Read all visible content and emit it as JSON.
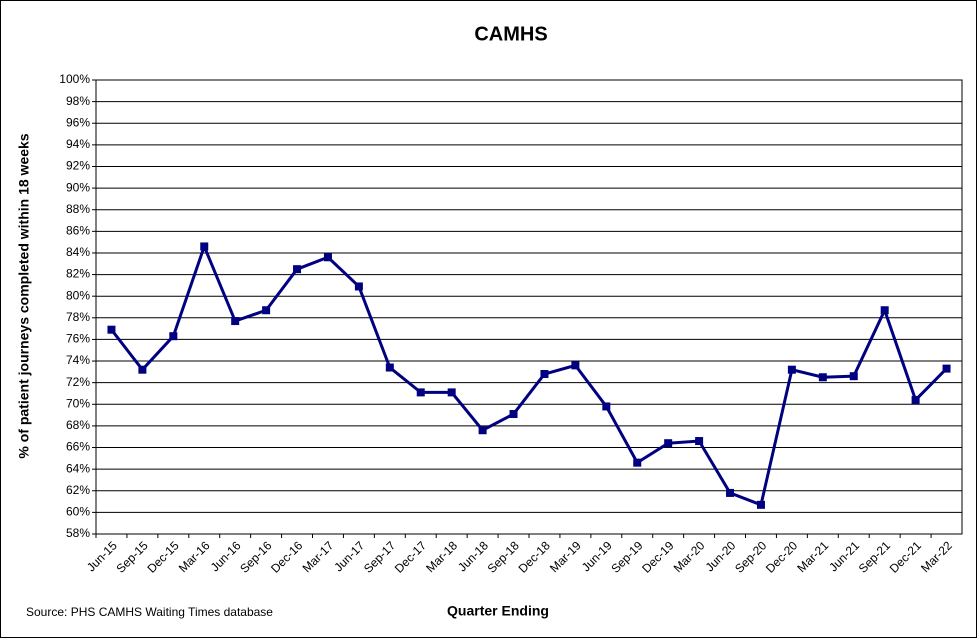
{
  "chart_data": {
    "type": "line",
    "title": "CAMHS",
    "x_label": "Quarter Ending",
    "y_label": "% of patient journeys completed within 18 weeks",
    "source": "Source:  PHS CAMHS Waiting Times database",
    "categories": [
      "Jun-15",
      "Sep-15",
      "Dec-15",
      "Mar-16",
      "Jun-16",
      "Sep-16",
      "Dec-16",
      "Mar-17",
      "Jun-17",
      "Sep-17",
      "Dec-17",
      "Mar-18",
      "Jun-18",
      "Sep-18",
      "Dec-18",
      "Mar-19",
      "Jun-19",
      "Sep-19",
      "Dec-19",
      "Mar-20",
      "Jun-20",
      "Sep-20",
      "Dec-20",
      "Mar-21",
      "Jun-21",
      "Sep-21",
      "Dec-21",
      "Mar-22"
    ],
    "series": [
      {
        "name": "CAMHS",
        "color": "#000080",
        "values": [
          76.9,
          73.2,
          76.3,
          84.6,
          77.7,
          78.7,
          82.5,
          83.6,
          80.9,
          73.4,
          71.1,
          71.1,
          67.6,
          69.1,
          72.8,
          73.6,
          69.8,
          64.6,
          66.4,
          66.6,
          61.8,
          60.7,
          73.2,
          72.5,
          72.6,
          78.7,
          70.4,
          73.3
        ]
      }
    ],
    "ylim": [
      58,
      100
    ],
    "yticks": [
      {
        "value": 58,
        "label": "58%"
      },
      {
        "value": 60,
        "label": "60%"
      },
      {
        "value": 62,
        "label": "62%"
      },
      {
        "value": 64,
        "label": "64%"
      },
      {
        "value": 66,
        "label": "66%"
      },
      {
        "value": 68,
        "label": "68%"
      },
      {
        "value": 70,
        "label": "70%"
      },
      {
        "value": 72,
        "label": "72%"
      },
      {
        "value": 74,
        "label": "74%"
      },
      {
        "value": 76,
        "label": "76%"
      },
      {
        "value": 78,
        "label": "78%"
      },
      {
        "value": 80,
        "label": "80%"
      },
      {
        "value": 82,
        "label": "82%"
      },
      {
        "value": 84,
        "label": "84%"
      },
      {
        "value": 86,
        "label": "86%"
      },
      {
        "value": 88,
        "label": "88%"
      },
      {
        "value": 90,
        "label": "90%"
      },
      {
        "value": 92,
        "label": "92%"
      },
      {
        "value": 94,
        "label": "94%"
      },
      {
        "value": 96,
        "label": "96%"
      },
      {
        "value": 98,
        "label": "98%"
      },
      {
        "value": 100,
        "label": "100%"
      }
    ],
    "grid": true
  }
}
